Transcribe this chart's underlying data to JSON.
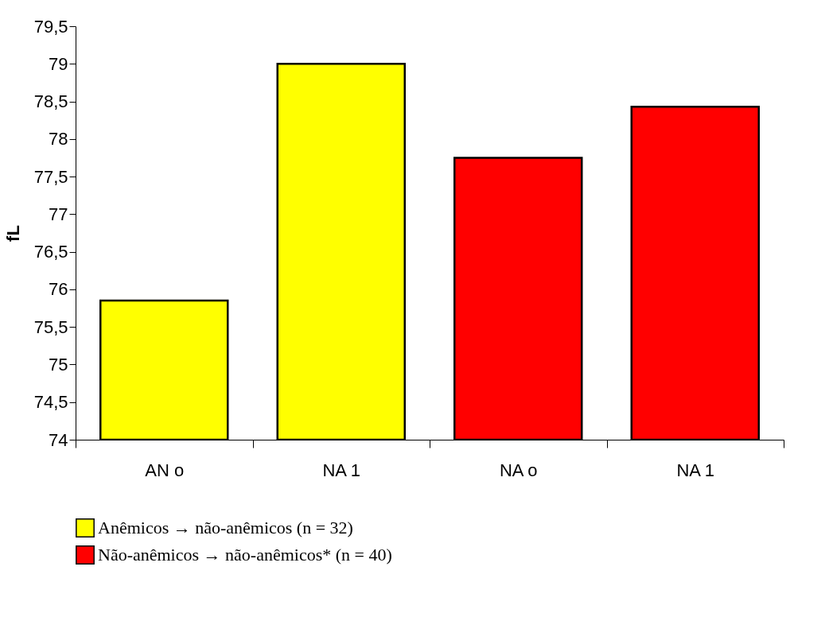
{
  "chart_data": {
    "type": "bar",
    "ylabel": "fL",
    "categories": [
      "AN o",
      "NA 1",
      "NA o",
      "NA 1"
    ],
    "series": [
      {
        "name": "Anêmicos → não-anêmicos (n = 32)",
        "color": "#ffff00",
        "values": [
          75.85,
          79.0,
          null,
          null
        ]
      },
      {
        "name": "Não-anêmicos → não-anêmicos* (n = 40)",
        "color": "#ff0000",
        "values": [
          null,
          null,
          77.75,
          78.43
        ]
      }
    ],
    "ylim": [
      74,
      79.5
    ],
    "yticks": [
      74,
      {
        "value": 74.5,
        "label": "74,5"
      },
      75,
      {
        "value": 75.5,
        "label": "75,5"
      },
      76,
      {
        "value": 76.5,
        "label": "76,5"
      },
      77,
      {
        "value": 77.5,
        "label": "77,5"
      },
      78,
      {
        "value": 78.5,
        "label": "78,5"
      },
      79,
      {
        "value": 79.5,
        "label": "79,5"
      }
    ],
    "grid": false,
    "legend": "bottom"
  }
}
